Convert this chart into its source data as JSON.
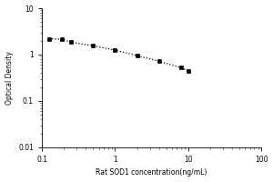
{
  "x_data": [
    0.125,
    0.188,
    0.25,
    0.5,
    1.0,
    2.0,
    4.0,
    8.0,
    10.0
  ],
  "y_data": [
    2.2,
    2.15,
    1.85,
    1.55,
    1.25,
    0.95,
    0.72,
    0.52,
    0.45
  ],
  "xlim": [
    0.1,
    100
  ],
  "ylim": [
    0.01,
    10
  ],
  "xlabel": "Rat SOD1 concentration(ng/mL)",
  "ylabel": "Optical Density",
  "marker": "s",
  "marker_color": "black",
  "marker_size": 3.5,
  "line_color": "black",
  "background_color": "#ffffff",
  "x_ticks": [
    0.1,
    1,
    10,
    100
  ],
  "x_tick_labels": [
    "0.1",
    "1",
    "10",
    "100"
  ],
  "y_ticks": [
    0.01,
    0.1,
    1,
    10
  ],
  "y_tick_labels": [
    "0.01",
    "0.1",
    "1",
    "10"
  ],
  "xlabel_fontsize": 5.5,
  "ylabel_fontsize": 5.5,
  "tick_fontsize": 5.5
}
